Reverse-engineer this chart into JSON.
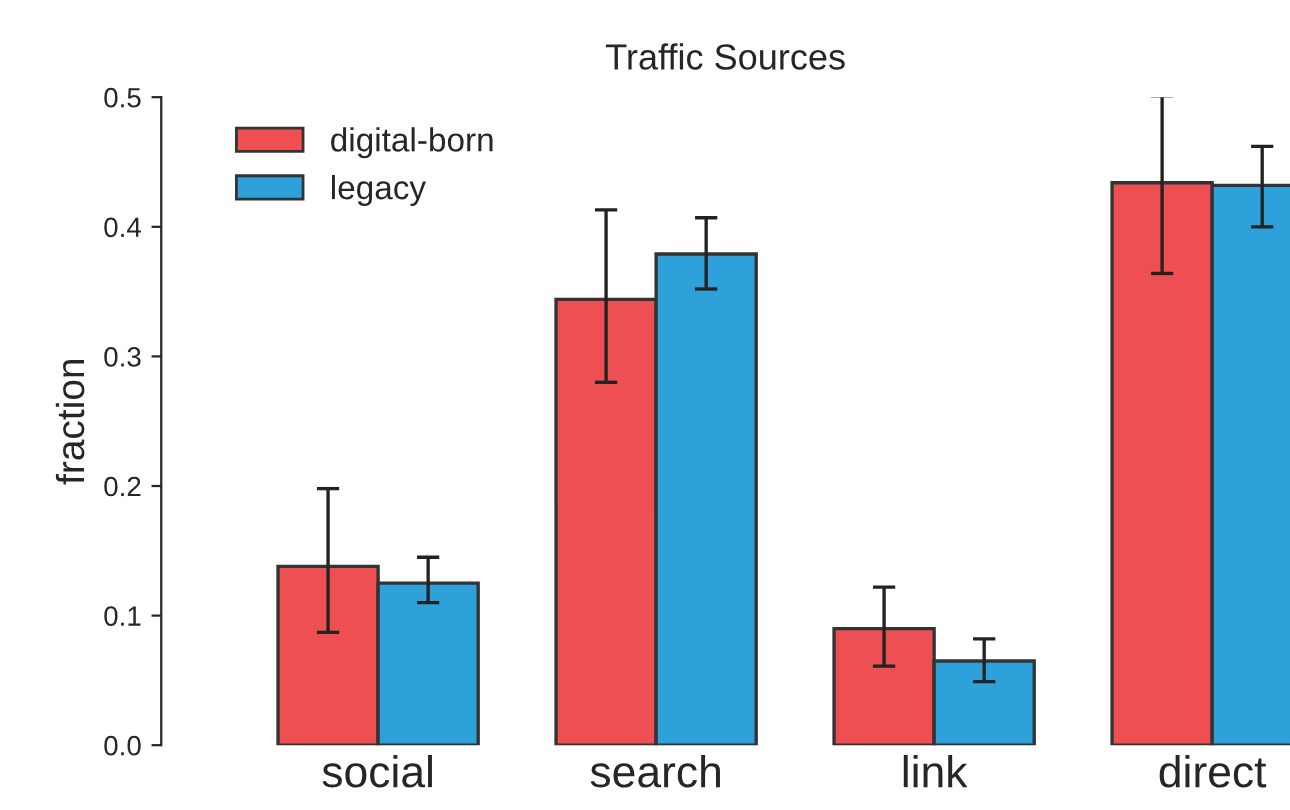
{
  "chart_data": {
    "type": "bar",
    "title": "Traffic Sources",
    "ylabel": "fraction",
    "categories": [
      "social",
      "search",
      "link",
      "direct"
    ],
    "series": [
      {
        "name": "digital-born",
        "color": "#ee4f52",
        "values": [
          0.138,
          0.344,
          0.09,
          0.434
        ],
        "errors": [
          [
            0.087,
            0.198
          ],
          [
            0.28,
            0.413
          ],
          [
            0.061,
            0.122
          ],
          [
            0.364,
            0.501
          ]
        ]
      },
      {
        "name": "legacy",
        "color": "#2ea1da",
        "values": [
          0.125,
          0.379,
          0.065,
          0.432
        ],
        "errors": [
          [
            0.11,
            0.145
          ],
          [
            0.352,
            0.407
          ],
          [
            0.049,
            0.082
          ],
          [
            0.4,
            0.462
          ]
        ]
      }
    ],
    "ylim": [
      0,
      0.5
    ],
    "yticks": [
      {
        "value": 0,
        "label": "0.0"
      },
      0.1,
      0.2,
      0.3,
      0.4,
      0.5
    ],
    "grid": false,
    "legend": "top left"
  }
}
